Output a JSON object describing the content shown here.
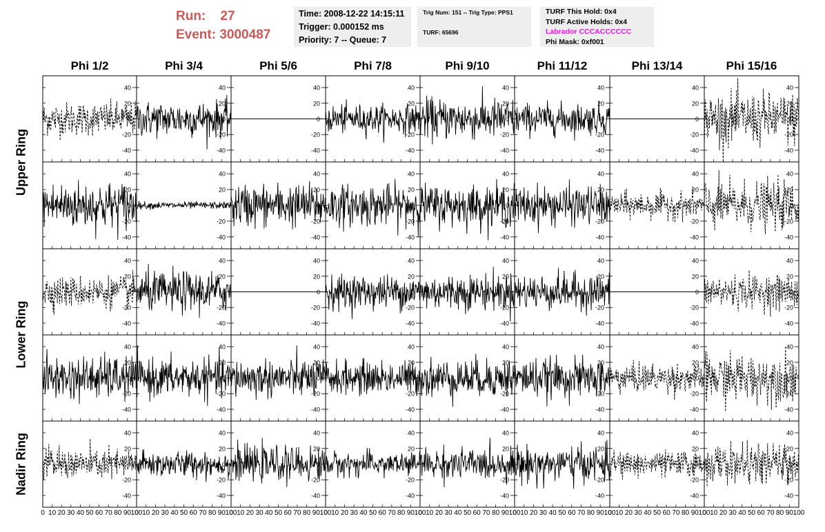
{
  "header": {
    "run_label": "Run:",
    "run_value": "27",
    "event_label": "Event:",
    "event_value": "3000487"
  },
  "info_time": {
    "time": "Time: 2008-12-22 14:15:11",
    "trigger": "Trigger: 0.000152 ms",
    "priority": "Priority: 7 -- Queue: 7"
  },
  "info_trig": {
    "trig": "Trig Num: 151 -- Trig Type: PPS1",
    "turf": "TURF: 65696"
  },
  "info_turf": {
    "this_hold": "TURF This Hold: 0x4",
    "active_holds": "TURF Active Holds: 0x4",
    "labrador": "Labrador CCCACCCCCC",
    "phi_mask": "Phi Mask: 0xf001"
  },
  "colors": {
    "run_text": "#c85a5a",
    "labrador_text": "#e619e6",
    "info_box": "#eeeeee",
    "trace": "#000000"
  },
  "chart_data": {
    "type": "line",
    "columns": [
      "Phi 1/2",
      "Phi 3/4",
      "Phi 5/6",
      "Phi 7/8",
      "Phi 9/10",
      "Phi 11/12",
      "Phi 13/14",
      "Phi 15/16"
    ],
    "rows": [
      "Upper Ring",
      "Upper Ring",
      "Lower Ring",
      "Lower Ring",
      "Nadir Ring"
    ],
    "row_labels": [
      {
        "text": "Upper Ring",
        "spans_rows": [
          0,
          1
        ]
      },
      {
        "text": "Lower Ring",
        "spans_rows": [
          2,
          3
        ]
      },
      {
        "text": "Nadir Ring",
        "spans_rows": [
          4
        ]
      }
    ],
    "xlim": [
      0,
      100
    ],
    "ylim": [
      -55,
      55
    ],
    "x_ticks": [
      0,
      10,
      20,
      30,
      40,
      50,
      60,
      70,
      80,
      90,
      100
    ],
    "x_tick_labels": [
      "0",
      "10",
      "20",
      "30",
      "40",
      "50",
      "60",
      "70",
      "80",
      "90",
      "100"
    ],
    "y_ticks": [
      -40,
      -20,
      0,
      20,
      40
    ],
    "y_tick_labels": [
      "-40",
      "-20",
      "0",
      "20",
      "40"
    ],
    "grid": false,
    "samples_per_trace": 100,
    "traces_description_note": "",
    "panels": [
      [
        {
          "style": "dashed",
          "amplitude": 14
        },
        {
          "style": "solid",
          "amplitude": 15
        },
        {
          "style": "flat",
          "amplitude": 0
        },
        {
          "style": "solid",
          "amplitude": 12
        },
        {
          "style": "solid",
          "amplitude": 17
        },
        {
          "style": "solid",
          "amplitude": 13
        },
        {
          "style": "flat",
          "amplitude": 0
        },
        {
          "style": "dashed",
          "amplitude": 22
        }
      ],
      [
        {
          "style": "solid",
          "amplitude": 20
        },
        {
          "style": "solid",
          "amplitude": 3
        },
        {
          "style": "solid",
          "amplitude": 18
        },
        {
          "style": "solid",
          "amplitude": 17
        },
        {
          "style": "solid",
          "amplitude": 17
        },
        {
          "style": "solid",
          "amplitude": 16
        },
        {
          "style": "dashed",
          "amplitude": 11
        },
        {
          "style": "dashed",
          "amplitude": 20
        }
      ],
      [
        {
          "style": "dashed",
          "amplitude": 13
        },
        {
          "style": "solid",
          "amplitude": 17
        },
        {
          "style": "flat",
          "amplitude": 0
        },
        {
          "style": "solid",
          "amplitude": 14
        },
        {
          "style": "solid",
          "amplitude": 15
        },
        {
          "style": "solid",
          "amplitude": 15
        },
        {
          "style": "flat",
          "amplitude": 0
        },
        {
          "style": "dashed",
          "amplitude": 14
        }
      ],
      [
        {
          "style": "solid",
          "amplitude": 18
        },
        {
          "style": "solid",
          "amplitude": 16
        },
        {
          "style": "solid",
          "amplitude": 16
        },
        {
          "style": "solid",
          "amplitude": 14
        },
        {
          "style": "solid",
          "amplitude": 16
        },
        {
          "style": "solid",
          "amplitude": 16
        },
        {
          "style": "dashed",
          "amplitude": 12
        },
        {
          "style": "dashed",
          "amplitude": 20
        }
      ],
      [
        {
          "style": "dashed",
          "amplitude": 13
        },
        {
          "style": "solid",
          "amplitude": 11
        },
        {
          "style": "solid",
          "amplitude": 14
        },
        {
          "style": "solid",
          "amplitude": 10
        },
        {
          "style": "solid",
          "amplitude": 13
        },
        {
          "style": "solid",
          "amplitude": 15
        },
        {
          "style": "dashed",
          "amplitude": 11
        },
        {
          "style": "dashed",
          "amplitude": 16
        }
      ]
    ]
  }
}
